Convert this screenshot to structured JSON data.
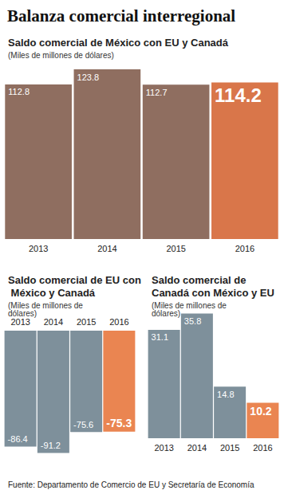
{
  "title": "Balanza comercial interregional",
  "source": "Fuente: Departamento de Comercio de EU y Secretaría de Economía",
  "chart_data": [
    {
      "type": "bar",
      "title": "Saldo comercial de México con EU y Canadá",
      "subtitle": "(Miles de millones de dólares)",
      "categories": [
        "2013",
        "2014",
        "2015",
        "2016"
      ],
      "values": [
        112.8,
        123.8,
        112.7,
        114.2
      ],
      "colors": [
        "#8f6e60",
        "#8f6e60",
        "#8f6e60",
        "#d9764a"
      ],
      "ylim": [
        0,
        125
      ],
      "data_labels": true,
      "tick_labels": "x",
      "grid": false
    },
    {
      "type": "bar",
      "title": "Saldo comercial de EU con México y Canadá",
      "subtitle": "(Miles de millones de dólares)",
      "categories": [
        "2013",
        "2014",
        "2015",
        "2016"
      ],
      "values": [
        -86.4,
        -91.2,
        -75.6,
        -75.3
      ],
      "colors": [
        "#7e909b",
        "#7e909b",
        "#7e909b",
        "#ea8551"
      ],
      "ylim": [
        -95,
        0
      ],
      "data_labels": true,
      "tick_labels": "x",
      "grid": false
    },
    {
      "type": "bar",
      "title": "Saldo comercial de Canadá con México y EU",
      "subtitle": "(Miles de millones de dólares)",
      "categories": [
        "2013",
        "2014",
        "2015",
        "2016"
      ],
      "values": [
        31.1,
        35.8,
        14.8,
        10.2
      ],
      "colors": [
        "#7e909b",
        "#7e909b",
        "#7e909b",
        "#ea8551"
      ],
      "ylim": [
        0,
        40
      ],
      "data_labels": true,
      "tick_labels": "x",
      "grid": false
    }
  ]
}
